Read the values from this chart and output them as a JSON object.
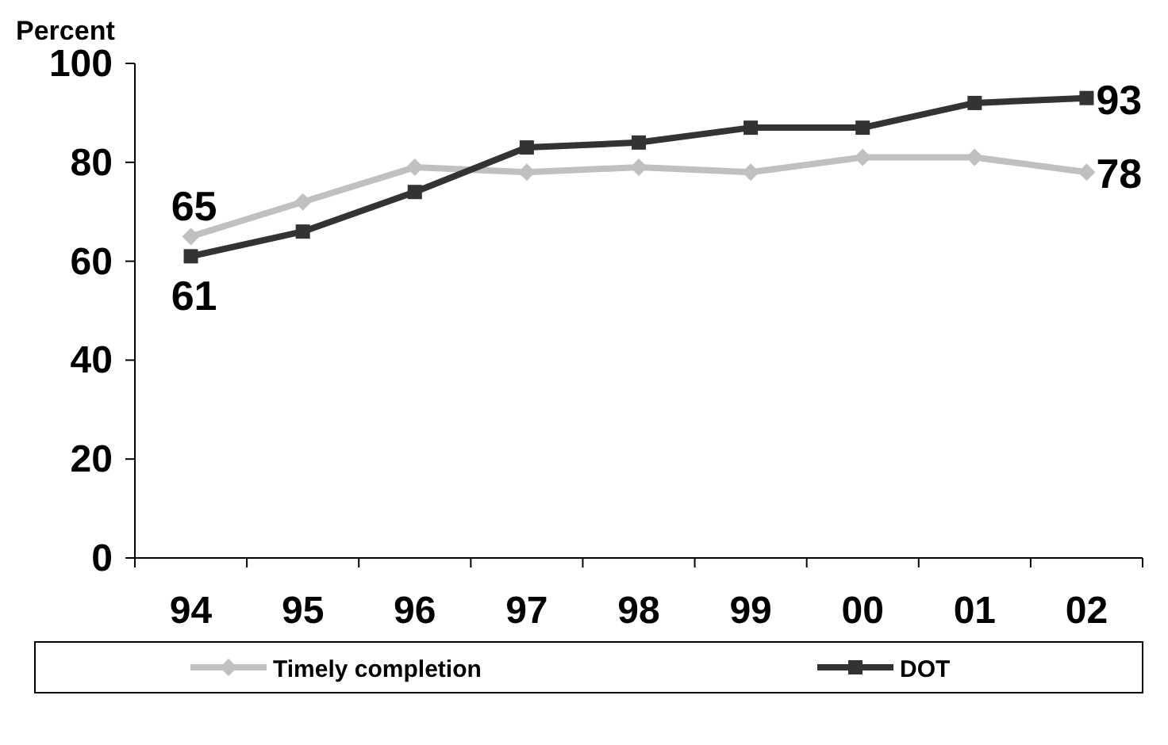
{
  "chart_data": {
    "type": "line",
    "ylabel": "Percent",
    "categories": [
      "94",
      "95",
      "96",
      "97",
      "98",
      "99",
      "00",
      "01",
      "02"
    ],
    "ylim": [
      0,
      100
    ],
    "yticks": [
      0,
      20,
      40,
      60,
      80,
      100
    ],
    "grid": false,
    "legend": "bottom",
    "series": [
      {
        "name": "Timely completion",
        "color": "#c0c0c0",
        "marker": "diamond",
        "values": [
          65,
          72,
          79,
          78,
          79,
          78,
          81,
          81,
          78
        ],
        "value_labels": [
          "65",
          null,
          null,
          null,
          null,
          null,
          null,
          null,
          "78"
        ]
      },
      {
        "name": "DOT",
        "color": "#333333",
        "marker": "square",
        "values": [
          61,
          66,
          74,
          83,
          84,
          87,
          87,
          92,
          93
        ],
        "value_labels": [
          "61",
          null,
          null,
          null,
          null,
          null,
          null,
          null,
          "93"
        ]
      }
    ]
  }
}
